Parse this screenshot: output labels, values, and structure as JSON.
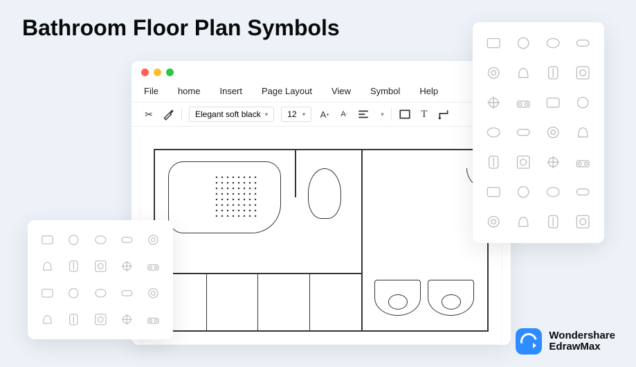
{
  "title": "Bathroom Floor Plan Symbols",
  "window": {
    "traffic_lights": [
      "#ff5f57",
      "#febc2e",
      "#28c840"
    ],
    "menu": [
      "File",
      "home",
      "Insert",
      "Page Layout",
      "View",
      "Symbol",
      "Help"
    ],
    "toolbar": {
      "font_name": "Elegant soft black",
      "font_size": "12",
      "icons": [
        "cut",
        "paint",
        "font-grow",
        "font-shrink",
        "align",
        "rect",
        "text",
        "connector"
      ]
    }
  },
  "palettes": {
    "left_count": 20,
    "right_count": 28
  },
  "brand": {
    "line1": "Wondershare",
    "line2": "EdrawMax"
  },
  "colors": {
    "page_bg": "#edf2f8",
    "window_bg": "#ffffff",
    "text": "#0a0a0a",
    "stroke": "#333333",
    "symbol_stroke": "#bfbfbf",
    "brand_blue": "#2d8cff"
  }
}
